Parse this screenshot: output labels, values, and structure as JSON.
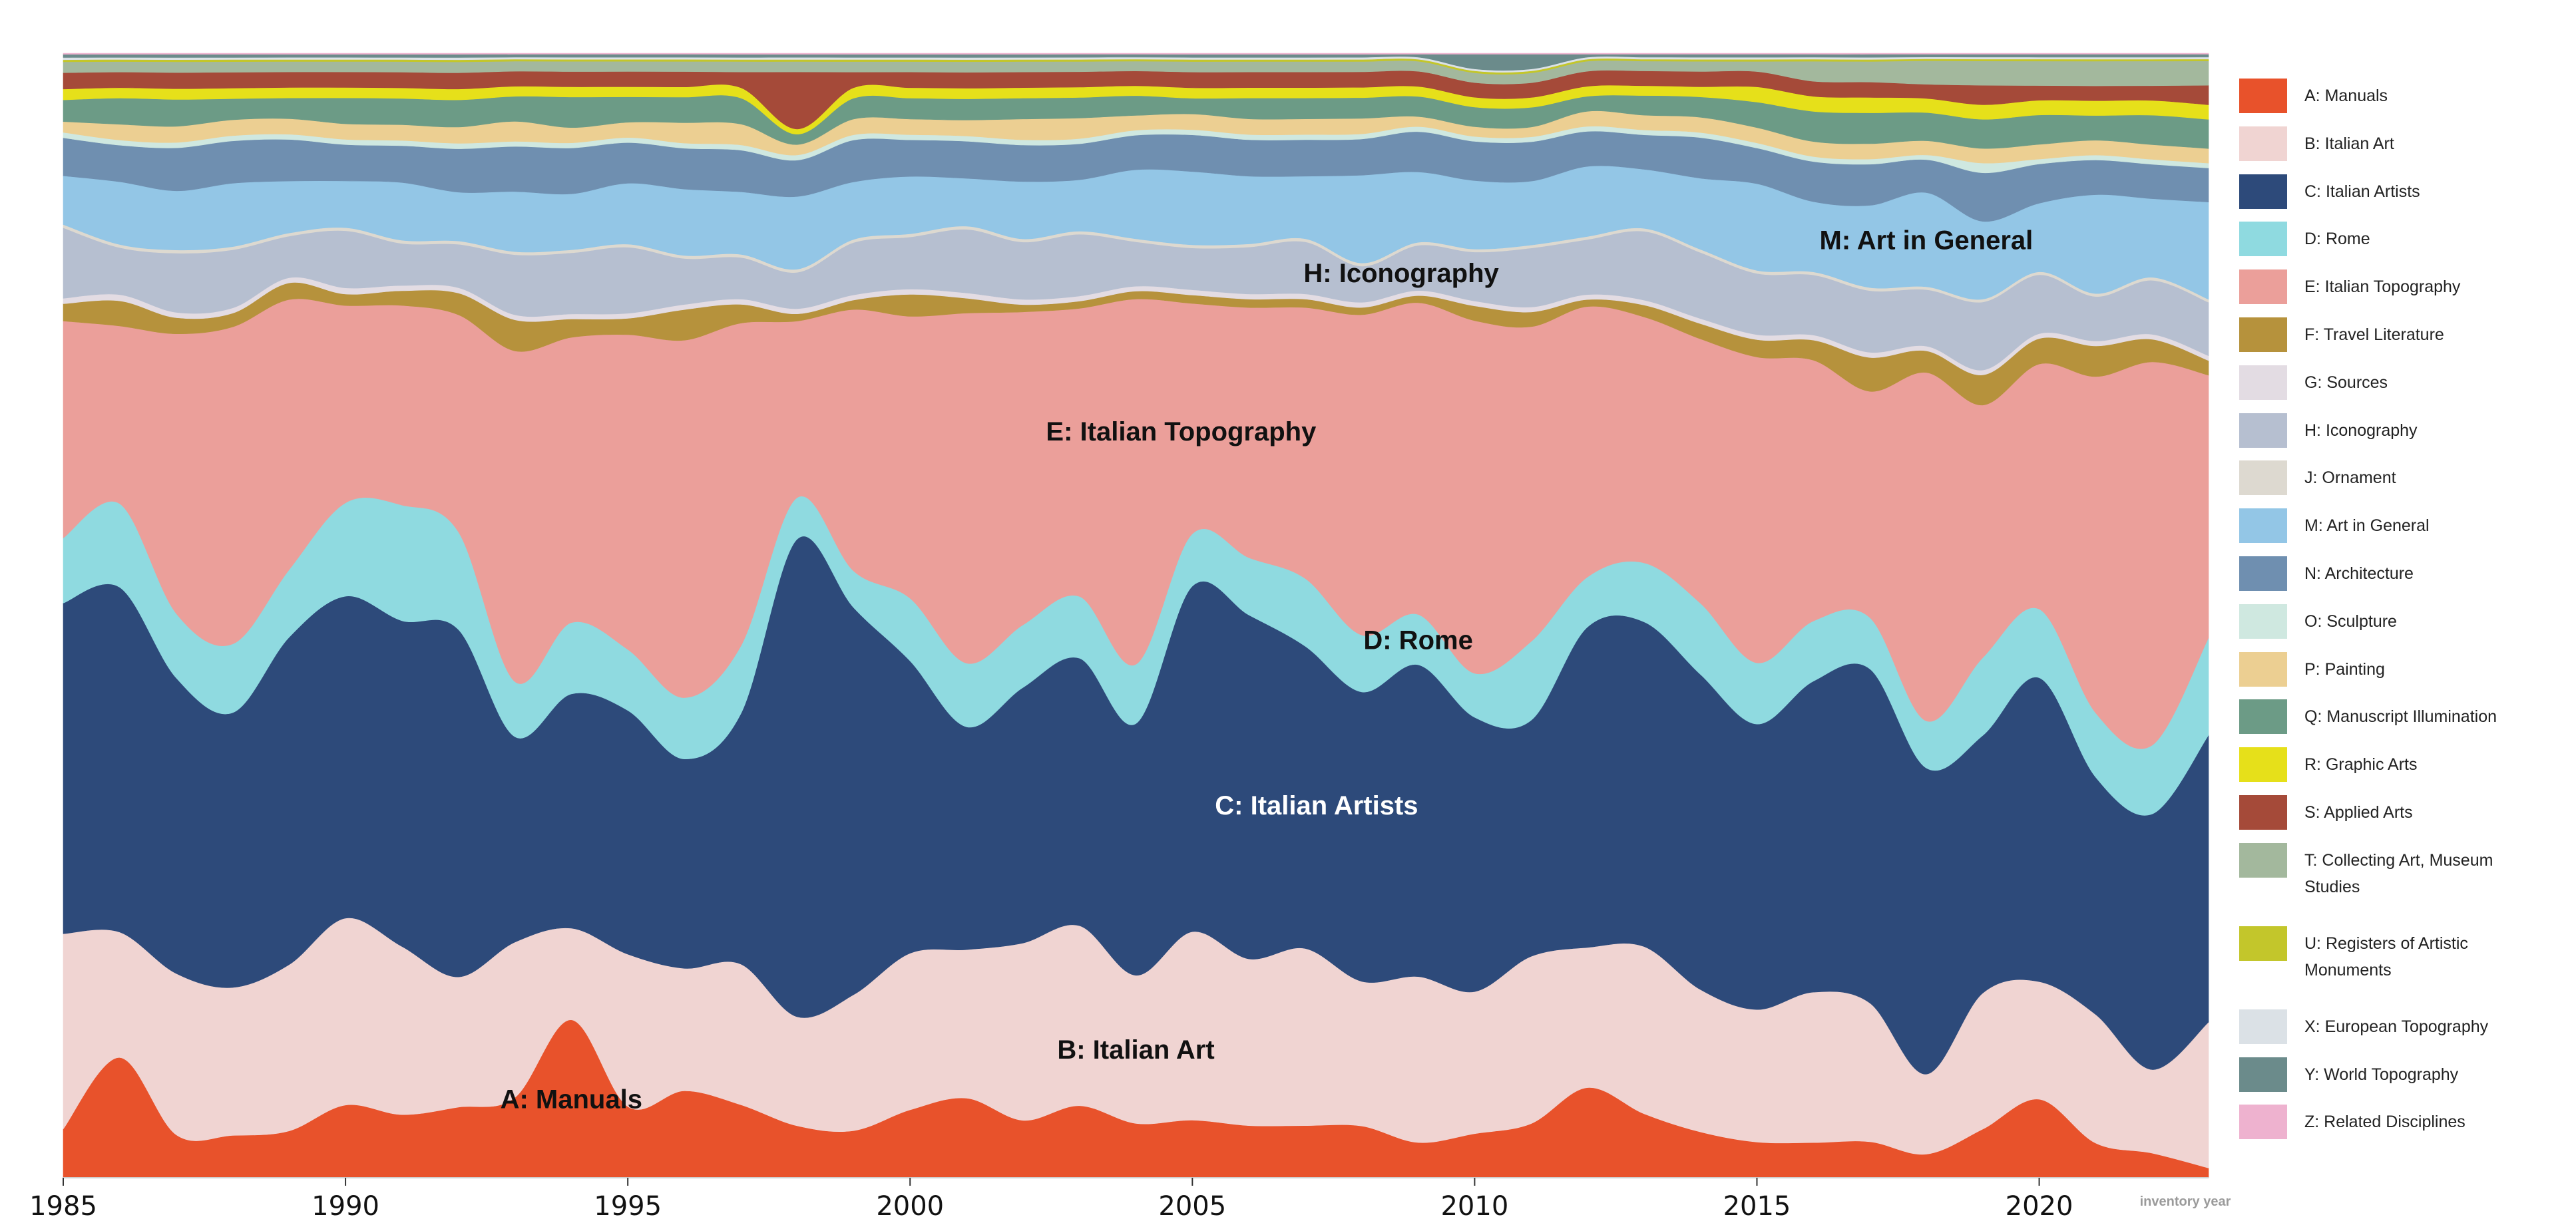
{
  "chart_data": {
    "type": "area",
    "stacked": true,
    "stream": true,
    "xlabel": "inventory year",
    "xlim": [
      1985,
      2023
    ],
    "x_ticks": [
      1985,
      1990,
      1995,
      2000,
      2005,
      2010,
      2015,
      2020
    ],
    "x_tick_labels": [
      "1985",
      "1990",
      "1995",
      "2000",
      "2005",
      "2010",
      "2015",
      "2020"
    ],
    "normalized": true,
    "legend_position": "right",
    "x": [
      1985,
      1986,
      1987,
      1988,
      1989,
      1990,
      1991,
      1992,
      1993,
      1994,
      1995,
      1996,
      1997,
      1998,
      1999,
      2000,
      2001,
      2002,
      2003,
      2004,
      2005,
      2006,
      2007,
      2008,
      2009,
      2010,
      2011,
      2012,
      2013,
      2014,
      2015,
      2016,
      2017,
      2018,
      2019,
      2020,
      2021,
      2022,
      2023
    ],
    "series": [
      {
        "name": "A: Manuals",
        "color": "#e8522b",
        "values": [
          4.5,
          11.5,
          4,
          4,
          4.5,
          7,
          6,
          6.5,
          8,
          15.5,
          7,
          8.5,
          7,
          5,
          4.5,
          6.5,
          7.5,
          5.5,
          7,
          5.5,
          5.5,
          5,
          5,
          5,
          3.5,
          4.5,
          5.5,
          9,
          6.5,
          4.5,
          3.5,
          3.5,
          3.5,
          2.5,
          5,
          8,
          3.5,
          2.5,
          1
        ]
      },
      {
        "name": "B: Italian Art",
        "color": "#f0d4d2",
        "values": [
          18,
          12,
          15,
          14,
          16,
          18,
          16,
          12,
          15.5,
          9,
          15,
          12,
          13.5,
          10.5,
          13,
          15,
          14,
          17,
          17.5,
          15,
          18,
          16,
          17,
          14,
          16.5,
          14.5,
          17,
          14,
          17,
          14,
          13,
          15,
          13.5,
          8.5,
          14,
          12,
          13,
          8.5,
          15
        ]
      },
      {
        "name": "C: Italian Artists",
        "color": "#2d4a7a",
        "values": [
          30.5,
          33,
          27.5,
          26,
          31.5,
          31,
          31,
          32,
          20.5,
          23,
          24,
          20.5,
          24,
          46,
          37,
          28,
          21,
          24.5,
          26,
          25.5,
          33,
          33,
          29,
          28,
          31,
          28,
          24,
          32,
          33,
          31,
          28,
          31,
          32.5,
          32.5,
          26.5,
          31,
          24,
          26,
          29.5
        ]
      },
      {
        "name": "D: Rome",
        "color": "#8fdae0",
        "values": [
          6,
          8,
          6,
          6.5,
          6.5,
          9,
          11,
          9,
          5.5,
          7,
          6,
          6,
          6.5,
          4,
          3.5,
          6,
          6,
          6,
          6,
          6,
          5,
          5.5,
          6.5,
          5.5,
          5,
          4.5,
          8,
          5,
          6,
          7,
          6,
          6,
          5,
          5,
          8,
          7,
          6.5,
          7,
          10
        ]
      },
      {
        "name": "E: Italian Topography",
        "color": "#eb9f9a",
        "values": [
          20,
          17,
          26,
          30,
          26,
          19,
          19,
          20,
          33,
          28,
          31,
          35,
          31,
          17,
          25,
          27,
          33,
          30,
          28,
          37,
          22,
          24,
          26,
          31,
          31,
          36,
          32,
          27,
          25,
          26,
          30,
          26,
          22,
          37,
          26,
          25,
          34,
          39,
          27
        ]
      },
      {
        "name": "F: Travel Literature",
        "color": "#b6923c",
        "values": [
          1.6,
          2.4,
          1.5,
          1.3,
          1.6,
          1.1,
          1.4,
          2,
          3.1,
          1.8,
          1.6,
          3,
          1.8,
          0.7,
          0.9,
          2.1,
          1.4,
          0.7,
          0.7,
          0.8,
          0.8,
          0.8,
          0.8,
          0.7,
          0.7,
          1.5,
          1.5,
          0.7,
          1.2,
          1.5,
          1.7,
          2,
          3.3,
          2.3,
          3.1,
          2.6,
          3.1,
          2.3,
          1.5
        ]
      },
      {
        "name": "G: Sources",
        "color": "#e3dce3",
        "values": [
          0.5,
          0.6,
          0.5,
          0.5,
          0.5,
          0.6,
          0.5,
          0.5,
          0.5,
          0.5,
          0.5,
          0.5,
          0.5,
          0.5,
          0.5,
          0.5,
          0.5,
          0.5,
          0.5,
          0.5,
          0.5,
          0.5,
          0.5,
          0.5,
          0.5,
          0.5,
          0.5,
          0.5,
          0.5,
          0.5,
          0.5,
          0.5,
          0.5,
          0.5,
          0.5,
          0.5,
          0.5,
          0.5,
          0.5
        ]
      },
      {
        "name": "H: Iconography",
        "color": "#b6bfd0",
        "values": [
          6.5,
          4.5,
          5.5,
          5.5,
          4,
          5.5,
          4,
          4,
          6,
          6,
          6.5,
          4.5,
          4,
          3.5,
          5,
          5,
          6,
          5.5,
          6,
          4.5,
          4,
          4.5,
          5,
          3.5,
          4.5,
          5,
          6,
          5.5,
          7,
          6.5,
          6,
          6,
          6,
          6,
          7,
          6,
          4.5,
          5.5,
          5.5
        ]
      },
      {
        "name": "J: Ornament",
        "color": "#ddd9d0",
        "values": [
          0.3,
          0.3,
          0.3,
          0.3,
          0.3,
          0.3,
          0.3,
          0.3,
          0.3,
          0.3,
          0.3,
          0.3,
          0.3,
          0.3,
          0.3,
          0.3,
          0.3,
          0.3,
          0.3,
          0.3,
          0.3,
          0.3,
          0.3,
          0.3,
          0.3,
          0.3,
          0.3,
          0.3,
          0.3,
          0.3,
          0.3,
          0.3,
          0.3,
          0.3,
          0.3,
          0.3,
          0.3,
          0.3,
          0.3
        ]
      },
      {
        "name": "M: Art in General",
        "color": "#93c6e6",
        "values": [
          4.5,
          6,
          5.5,
          6,
          5,
          4.5,
          5.5,
          4.5,
          6,
          5.5,
          6,
          6.5,
          6,
          7,
          5.5,
          5.5,
          4.5,
          5.5,
          5,
          7,
          7,
          6.5,
          6,
          8.5,
          7,
          7,
          6.5,
          7,
          6,
          7,
          8.5,
          7,
          8,
          10,
          8,
          7,
          10,
          8,
          10
        ]
      },
      {
        "name": "N: Architecture",
        "color": "#6f8fb0",
        "values": [
          3.5,
          3.5,
          4,
          4,
          4,
          3.5,
          3.5,
          4,
          4.5,
          4.5,
          4,
          4,
          4,
          3.5,
          4,
          3.5,
          3.5,
          3.5,
          3.5,
          3.5,
          3.5,
          3.5,
          3.5,
          3.5,
          4,
          4,
          4,
          3.5,
          3.5,
          4,
          3.5,
          4,
          4,
          3.5,
          5,
          4,
          3.5,
          3.5,
          3.5
        ]
      },
      {
        "name": "O: Sculpture",
        "color": "#cfe8e0",
        "values": [
          0.5,
          0.5,
          0.5,
          0.5,
          0.5,
          0.5,
          0.5,
          0.5,
          0.5,
          0.5,
          0.5,
          0.5,
          0.5,
          0.5,
          0.5,
          0.5,
          0.5,
          0.5,
          0.5,
          0.5,
          0.5,
          0.5,
          0.5,
          0.5,
          0.5,
          0.5,
          0.5,
          0.5,
          0.5,
          0.5,
          0.5,
          0.5,
          0.5,
          0.5,
          1,
          0.5,
          0.5,
          0.5,
          0.5
        ]
      },
      {
        "name": "P: Painting",
        "color": "#eccf92",
        "values": [
          1,
          1.5,
          1.5,
          1.5,
          1.5,
          1.5,
          1.5,
          1.5,
          2,
          1.5,
          1.5,
          2,
          2,
          1,
          1.5,
          1.5,
          1.5,
          2,
          2,
          1.5,
          1.5,
          1.5,
          1.5,
          1.5,
          1,
          1,
          1,
          1.5,
          1.5,
          1.5,
          1.5,
          1.5,
          1.5,
          1.5,
          1.5,
          1.5,
          1.5,
          1.5,
          1.5
        ]
      },
      {
        "name": "Q: Manuscript Illumination",
        "color": "#6c9b86",
        "values": [
          2,
          2.5,
          2.5,
          2,
          2,
          2.5,
          2.5,
          2.5,
          2.5,
          3,
          2.5,
          2.5,
          2.5,
          1,
          2,
          2,
          2,
          2,
          2,
          2,
          1.5,
          2,
          2,
          2,
          2,
          2,
          2,
          1.5,
          2,
          2,
          2.5,
          3,
          3,
          3,
          3,
          3,
          2.5,
          3,
          3
        ]
      },
      {
        "name": "R: Graphic Arts",
        "color": "#e6e01a",
        "values": [
          1,
          1,
          1,
          1,
          1,
          1,
          1,
          1,
          1,
          1,
          1,
          1,
          1,
          0.5,
          1,
          1,
          1,
          1,
          1,
          1,
          1,
          1,
          1,
          1,
          1,
          1,
          1,
          1,
          1,
          1,
          1.5,
          1.5,
          1.5,
          1.5,
          1.5,
          1.5,
          1.5,
          1.5,
          1.5
        ]
      },
      {
        "name": "S: Applied Arts",
        "color": "#a54a39",
        "values": [
          1.5,
          1.5,
          1.5,
          1.5,
          1.5,
          1.5,
          1.5,
          1.5,
          1.5,
          1.5,
          1.5,
          1.5,
          1.5,
          5.5,
          1.5,
          1.5,
          1.5,
          1.5,
          1.5,
          1.5,
          1.5,
          1.5,
          1.5,
          1.5,
          1.5,
          1.5,
          1.5,
          1.5,
          1.5,
          1.5,
          1.5,
          1.5,
          1.5,
          1.5,
          2,
          1.5,
          1.5,
          1.5,
          2
        ]
      },
      {
        "name": "T: Collecting Art, Museum Studies",
        "color": "#a3b89d",
        "values": [
          1,
          1,
          1,
          1,
          1,
          1,
          1,
          1,
          1,
          1,
          1,
          1,
          1,
          1,
          1,
          1,
          1,
          1,
          1,
          1,
          1,
          1,
          1,
          1,
          1,
          1,
          1,
          1,
          1,
          1,
          1,
          2,
          2,
          2.5,
          2.5,
          2.5,
          2.5,
          2.5,
          2.5
        ]
      },
      {
        "name": "U: Registers of Artistic Monuments",
        "color": "#c3c62b",
        "values": [
          0.2,
          0.2,
          0.2,
          0.2,
          0.2,
          0.2,
          0.2,
          0.2,
          0.2,
          0.2,
          0.2,
          0.2,
          0.2,
          0.2,
          0.2,
          0.2,
          0.2,
          0.2,
          0.2,
          0.2,
          0.2,
          0.2,
          0.2,
          0.2,
          0.2,
          0.2,
          0.2,
          0.2,
          0.2,
          0.2,
          0.2,
          0.2,
          0.2,
          0.2,
          0.2,
          0.2,
          0.2,
          0.2,
          0.2
        ]
      },
      {
        "name": "X: European Topography",
        "color": "#dbe1e6",
        "values": [
          0.2,
          0.2,
          0.2,
          0.2,
          0.2,
          0.2,
          0.2,
          0.2,
          0.2,
          0.2,
          0.2,
          0.2,
          0.2,
          0.2,
          0.2,
          0.2,
          0.2,
          0.2,
          0.2,
          0.2,
          0.2,
          0.2,
          0.2,
          0.2,
          0.2,
          0.2,
          0.2,
          0.2,
          0.2,
          0.2,
          0.2,
          0.2,
          0.2,
          0.2,
          0.2,
          0.2,
          0.2,
          0.2,
          0.2
        ]
      },
      {
        "name": "Y: World Topography",
        "color": "#6b8b8b",
        "values": [
          0.3,
          0.3,
          0.3,
          0.3,
          0.3,
          0.3,
          0.3,
          0.3,
          0.3,
          0.3,
          0.3,
          0.3,
          0.3,
          0.3,
          0.3,
          0.3,
          0.3,
          0.3,
          0.3,
          0.3,
          0.3,
          0.3,
          0.3,
          0.3,
          0.3,
          1.5,
          1.5,
          0.3,
          0.3,
          0.3,
          0.3,
          0.3,
          0.3,
          0.3,
          0.3,
          0.3,
          0.3,
          0.3,
          0.3
        ]
      },
      {
        "name": "Z: Related Disciplines",
        "color": "#eeb2cf",
        "values": [
          0.1,
          0.1,
          0.1,
          0.1,
          0.1,
          0.1,
          0.1,
          0.1,
          0.1,
          0.1,
          0.1,
          0.1,
          0.1,
          0.1,
          0.1,
          0.1,
          0.1,
          0.1,
          0.1,
          0.1,
          0.1,
          0.1,
          0.1,
          0.1,
          0.1,
          0.1,
          0.1,
          0.1,
          0.1,
          0.1,
          0.1,
          0.1,
          0.1,
          0.1,
          0.1,
          0.1,
          0.1,
          0.1,
          0.1
        ]
      }
    ],
    "annotations": [
      {
        "text": "A: Manuals",
        "x": 1994,
        "series": "A: Manuals"
      },
      {
        "text": "B: Italian Art",
        "x": 2004,
        "series": "B: Italian Art"
      },
      {
        "text": "C: Italian Artists",
        "x": 2007.2,
        "series": "C: Italian Artists"
      },
      {
        "text": "D: Rome",
        "x": 2009,
        "series": "D: Rome"
      },
      {
        "text": "E: Italian Topography",
        "x": 2004.8,
        "series": "E: Italian Topography"
      },
      {
        "text": "H: Iconography",
        "x": 2008.7,
        "series": "H: Iconography"
      },
      {
        "text": "M: Art in General",
        "x": 2018,
        "series": "M: Art in General"
      }
    ]
  }
}
